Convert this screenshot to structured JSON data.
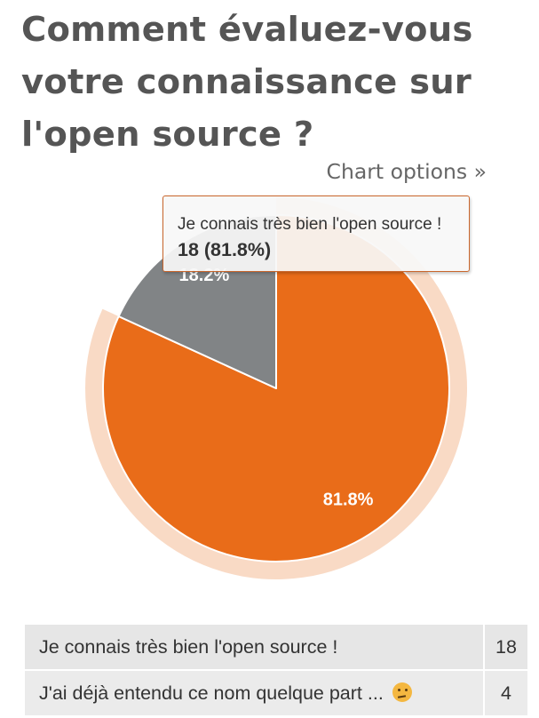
{
  "title": "Comment évaluez-vous votre connaissance sur l'open source ?",
  "chart_options_label": "Chart options »",
  "chart_data": {
    "type": "pie",
    "categories": [
      "Je connais très bien l'open source !",
      "J'ai déjà entendu ce nom quelque part ..."
    ],
    "values": [
      18,
      4
    ],
    "percent_labels": [
      "81.8%",
      "18.2%"
    ],
    "colors": [
      "#e96c19",
      "#818486"
    ],
    "highlighted_slice": 0,
    "title": "Comment évaluez-vous votre connaissance sur l'open source ?",
    "xlabel": "",
    "ylabel": "",
    "legend": "none"
  },
  "tooltip": {
    "label": "Je connais très bien l'open source !",
    "value": "18 (81.8%)"
  },
  "table": {
    "rows": [
      {
        "label": "Je connais très bien l'open source !",
        "count": "18",
        "emoji": ""
      },
      {
        "label": "J'ai déjà entendu ce nom quelque part ... ",
        "count": "4",
        "emoji": "thinking-face-icon"
      }
    ]
  }
}
